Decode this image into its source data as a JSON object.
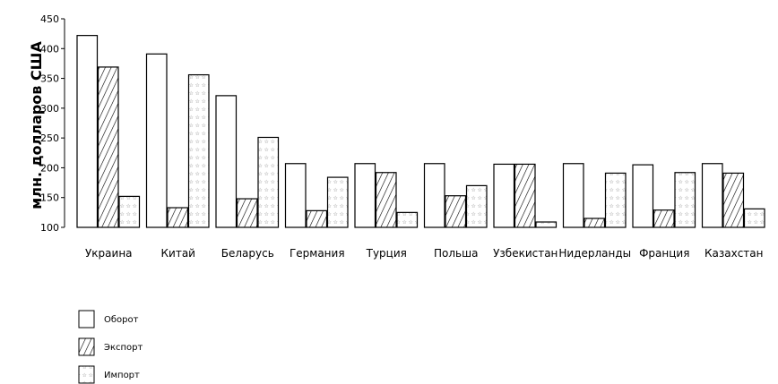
{
  "chart_data": {
    "type": "bar",
    "ylabel": "млн. долларов США",
    "xlabel": "",
    "ylim": [
      100,
      450
    ],
    "yticks": [
      100,
      150,
      200,
      250,
      300,
      350,
      400,
      450
    ],
    "grid": false,
    "legend_position": "bottom-left",
    "categories": [
      "Украина",
      "Китай",
      "Беларусь",
      "Германия",
      "Турция",
      "Польша",
      "Узбекистан",
      "Нидерланды",
      "Франция",
      "Казахстан"
    ],
    "series": [
      {
        "name": "Оборот",
        "pattern": "none",
        "values": [
          422,
          391,
          321,
          207,
          207,
          207,
          206,
          207,
          205,
          207
        ]
      },
      {
        "name": "Экспорт",
        "pattern": "diagonal-hatch",
        "values": [
          369,
          133,
          148,
          128,
          192,
          153,
          206,
          115,
          129,
          191
        ]
      },
      {
        "name": "Импорт",
        "pattern": "stars",
        "values": [
          152,
          356,
          251,
          184,
          125,
          170,
          109,
          191,
          192,
          131
        ]
      }
    ],
    "colors": {
      "stroke": "#000000",
      "fill": "#ffffff"
    }
  }
}
